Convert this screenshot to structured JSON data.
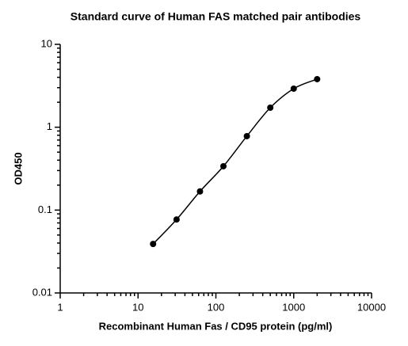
{
  "chart_data": {
    "type": "scatter",
    "title": "Standard curve of Human FAS  matched pair antibodies",
    "x_label": "Recombinant Human Fas / CD95 protein (pg/ml)",
    "y_label": "OD450",
    "x": [
      15.6,
      31.25,
      62.5,
      125,
      250,
      500,
      1000,
      2000
    ],
    "values": [
      0.039,
      0.077,
      0.168,
      0.338,
      0.78,
      1.72,
      2.92,
      3.8
    ],
    "color": "#000000",
    "xlim": [
      1,
      10000
    ],
    "ylim": [
      0.01,
      10
    ],
    "xticks": [
      1,
      10,
      100,
      1000,
      10000
    ],
    "yticks": [
      0.01,
      0.1,
      1,
      10
    ],
    "xscale": "log",
    "yscale": "log",
    "grid": false
  }
}
